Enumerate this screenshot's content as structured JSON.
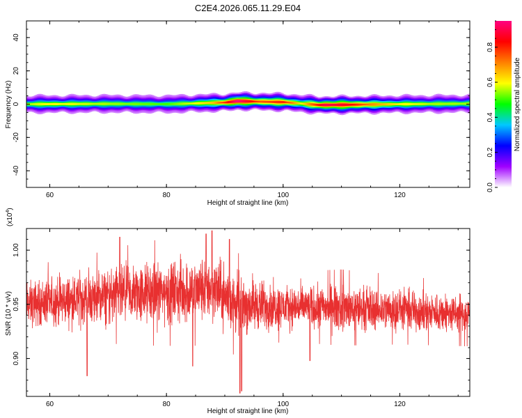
{
  "title": "C2E4.2026.065.11.29.E04",
  "chart_data": [
    {
      "type": "heatmap",
      "title": "",
      "xlabel": "Height of straight line (km)",
      "ylabel": "Frequency (Hz)",
      "xlim": [
        56,
        132
      ],
      "ylim": [
        -50,
        50
      ],
      "xticks": [
        "60",
        "80",
        "100",
        "120"
      ],
      "yticks": [
        "40",
        "20",
        "0",
        "-20",
        "-40"
      ],
      "colorbar": {
        "label": "Normalized spectral amplitude",
        "range": [
          0,
          0.95
        ],
        "ticks": [
          "0.0",
          "0.2",
          "0.4",
          "0.6",
          "0.8"
        ],
        "colors": [
          "#ffffff",
          "#a000ff",
          "#0000ff",
          "#00c8ff",
          "#00ff00",
          "#ffff00",
          "#ff8000",
          "#ff0000",
          "#ff0080"
        ]
      },
      "band_center_hz": [
        {
          "x": 56,
          "y": 0.0
        },
        {
          "x": 70,
          "y": 0.2
        },
        {
          "x": 80,
          "y": 0.0
        },
        {
          "x": 90,
          "y": 1.0
        },
        {
          "x": 92,
          "y": 1.8
        },
        {
          "x": 100,
          "y": 1.2
        },
        {
          "x": 106,
          "y": -0.5
        },
        {
          "x": 112,
          "y": -0.3
        },
        {
          "x": 120,
          "y": 0.0
        },
        {
          "x": 132,
          "y": 0.3
        }
      ],
      "peak_amplitude": [
        {
          "x": 56,
          "v": 0.55
        },
        {
          "x": 60,
          "v": 0.6
        },
        {
          "x": 70,
          "v": 0.55
        },
        {
          "x": 80,
          "v": 0.5
        },
        {
          "x": 88,
          "v": 0.65
        },
        {
          "x": 92,
          "v": 0.95
        },
        {
          "x": 96,
          "v": 0.75
        },
        {
          "x": 100,
          "v": 0.8
        },
        {
          "x": 103,
          "v": 0.6
        },
        {
          "x": 107,
          "v": 0.9
        },
        {
          "x": 111,
          "v": 0.85
        },
        {
          "x": 115,
          "v": 0.7
        },
        {
          "x": 120,
          "v": 0.6
        },
        {
          "x": 126,
          "v": 0.55
        },
        {
          "x": 132,
          "v": 0.55
        }
      ],
      "band_halfwidth_hz": 3
    },
    {
      "type": "line",
      "title": "",
      "xlabel": "Height of straight line (km)",
      "ylabel": "SNR (10 * v/v)",
      "scale_label": "(x10",
      "scale_exponent": "4",
      "scale_close": ")",
      "xlim": [
        56,
        132
      ],
      "ylim": [
        0.865,
        1.02
      ],
      "xticks": [
        "60",
        "80",
        "100",
        "120"
      ],
      "yticks": [
        "1.00",
        "0.95",
        "0.90"
      ],
      "line_color": "#e83030",
      "series": [
        {
          "mean_profile": [
            {
              "x": 56,
              "y": 0.95
            },
            {
              "x": 66,
              "y": 0.955
            },
            {
              "x": 76,
              "y": 0.96
            },
            {
              "x": 84,
              "y": 0.962
            },
            {
              "x": 88,
              "y": 0.965
            },
            {
              "x": 92,
              "y": 0.95
            },
            {
              "x": 100,
              "y": 0.948
            },
            {
              "x": 110,
              "y": 0.947
            },
            {
              "x": 120,
              "y": 0.945
            },
            {
              "x": 132,
              "y": 0.94
            }
          ],
          "noise_amplitude": [
            {
              "x": 56,
              "a": 0.022
            },
            {
              "x": 66,
              "a": 0.025
            },
            {
              "x": 76,
              "a": 0.03
            },
            {
              "x": 86,
              "a": 0.032
            },
            {
              "x": 92,
              "a": 0.03
            },
            {
              "x": 100,
              "a": 0.02
            },
            {
              "x": 110,
              "a": 0.022
            },
            {
              "x": 120,
              "a": 0.02
            },
            {
              "x": 132,
              "a": 0.018
            }
          ],
          "dips": [
            {
              "x": 66.4,
              "y": 0.884
            },
            {
              "x": 84.5,
              "y": 0.893
            },
            {
              "x": 92.6,
              "y": 0.868
            },
            {
              "x": 92.9,
              "y": 0.87
            },
            {
              "x": 104.6,
              "y": 0.898
            }
          ],
          "peaks": [
            {
              "x": 86.8,
              "y": 1.015
            },
            {
              "x": 87.8,
              "y": 1.018
            },
            {
              "x": 72.0,
              "y": 1.012
            },
            {
              "x": 90.8,
              "y": 1.01
            }
          ]
        }
      ]
    }
  ]
}
